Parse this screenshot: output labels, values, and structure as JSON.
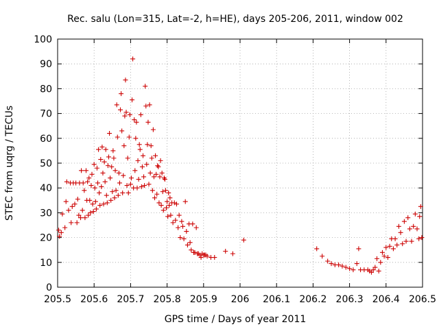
{
  "chart_data": {
    "type": "scatter",
    "title": "Rec. salu (Lon=315, Lat=-2, h=HE), days 205-206, 2011, window 002",
    "xlabel": "GPS time / Days of year 2011",
    "ylabel": "STEC from uqrg / TECUs",
    "xlim": [
      205.5,
      206.5
    ],
    "ylim": [
      0,
      100
    ],
    "x_ticks": [
      205.5,
      205.6,
      205.7,
      205.8,
      205.9,
      206.0,
      206.1,
      206.2,
      206.3,
      206.4,
      206.5
    ],
    "x_tick_labels": [
      "205.5",
      "205.6",
      "205.7",
      "205.8",
      "205.9",
      "206",
      "206.1",
      "206.2",
      "206.3",
      "206.4",
      "206.5"
    ],
    "y_ticks": [
      0,
      10,
      20,
      30,
      40,
      50,
      60,
      70,
      80,
      90,
      100
    ],
    "y_tick_labels": [
      "0",
      "10",
      "20",
      "30",
      "40",
      "50",
      "60",
      "70",
      "80",
      "90",
      "100"
    ],
    "marker": "+",
    "color": "#cc0000",
    "series": [
      {
        "name": "STEC",
        "points": [
          [
            205.503,
            23.0
          ],
          [
            205.505,
            20.5
          ],
          [
            205.51,
            22.0
          ],
          [
            205.513,
            29.5
          ],
          [
            205.52,
            24.0
          ],
          [
            205.523,
            34.5
          ],
          [
            205.525,
            42.5
          ],
          [
            205.53,
            31.0
          ],
          [
            205.535,
            42.0
          ],
          [
            205.537,
            26.0
          ],
          [
            205.54,
            32.5
          ],
          [
            205.543,
            42.0
          ],
          [
            205.547,
            33.5
          ],
          [
            205.55,
            42.0
          ],
          [
            205.553,
            26.0
          ],
          [
            205.555,
            35.5
          ],
          [
            205.558,
            29.0
          ],
          [
            205.56,
            42.0
          ],
          [
            205.563,
            28.0
          ],
          [
            205.565,
            47.0
          ],
          [
            205.568,
            31.0
          ],
          [
            205.57,
            42.0
          ],
          [
            205.573,
            39.0
          ],
          [
            205.575,
            28.0
          ],
          [
            205.578,
            47.0
          ],
          [
            205.58,
            35.0
          ],
          [
            205.582,
            42.5
          ],
          [
            205.584,
            29.0
          ],
          [
            205.586,
            44.0
          ],
          [
            205.588,
            35.0
          ],
          [
            205.59,
            30.0
          ],
          [
            205.592,
            41.0
          ],
          [
            205.594,
            45.5
          ],
          [
            205.596,
            33.5
          ],
          [
            205.598,
            30.5
          ],
          [
            205.6,
            49.5
          ],
          [
            205.602,
            40.0
          ],
          [
            205.604,
            34.5
          ],
          [
            205.606,
            31.5
          ],
          [
            205.608,
            48.0
          ],
          [
            205.61,
            42.0
          ],
          [
            205.612,
            55.5
          ],
          [
            205.614,
            38.0
          ],
          [
            205.616,
            33.0
          ],
          [
            205.618,
            51.5
          ],
          [
            205.62,
            40.5
          ],
          [
            205.622,
            56.5
          ],
          [
            205.624,
            46.0
          ],
          [
            205.626,
            33.5
          ],
          [
            205.628,
            50.5
          ],
          [
            205.63,
            42.5
          ],
          [
            205.632,
            55.5
          ],
          [
            205.634,
            37.0
          ],
          [
            205.636,
            34.0
          ],
          [
            205.638,
            49.0
          ],
          [
            205.64,
            52.5
          ],
          [
            205.642,
            62.0
          ],
          [
            205.644,
            44.0
          ],
          [
            205.646,
            35.0
          ],
          [
            205.648,
            48.5
          ],
          [
            205.65,
            38.5
          ],
          [
            205.652,
            55.0
          ],
          [
            205.654,
            52.0
          ],
          [
            205.656,
            36.0
          ],
          [
            205.658,
            47.0
          ],
          [
            205.66,
            39.0
          ],
          [
            205.662,
            73.5
          ],
          [
            205.664,
            60.5
          ],
          [
            205.666,
            37.0
          ],
          [
            205.668,
            46.0
          ],
          [
            205.67,
            42.0
          ],
          [
            205.672,
            71.5
          ],
          [
            205.674,
            78.0
          ],
          [
            205.676,
            63.0
          ],
          [
            205.678,
            38.0
          ],
          [
            205.68,
            45.0
          ],
          [
            205.682,
            57.0
          ],
          [
            205.684,
            69.0
          ],
          [
            205.686,
            83.5
          ],
          [
            205.688,
            70.5
          ],
          [
            205.69,
            41.0
          ],
          [
            205.692,
            52.0
          ],
          [
            205.694,
            38.0
          ],
          [
            205.696,
            60.5
          ],
          [
            205.698,
            69.5
          ],
          [
            205.7,
            41.5
          ],
          [
            205.702,
            44.0
          ],
          [
            205.704,
            75.5
          ],
          [
            205.706,
            92.0
          ],
          [
            205.708,
            40.0
          ],
          [
            205.71,
            67.5
          ],
          [
            205.712,
            47.0
          ],
          [
            205.714,
            60.0
          ],
          [
            205.716,
            66.5
          ],
          [
            205.718,
            40.0
          ],
          [
            205.72,
            51.0
          ],
          [
            205.722,
            43.5
          ],
          [
            205.724,
            57.5
          ],
          [
            205.726,
            55.5
          ],
          [
            205.728,
            69.5
          ],
          [
            205.73,
            40.5
          ],
          [
            205.732,
            48.5
          ],
          [
            205.734,
            53.0
          ],
          [
            205.736,
            44.5
          ],
          [
            205.738,
            41.0
          ],
          [
            205.74,
            81.0
          ],
          [
            205.742,
            73.0
          ],
          [
            205.744,
            49.5
          ],
          [
            205.746,
            57.5
          ],
          [
            205.748,
            66.5
          ],
          [
            205.75,
            41.5
          ],
          [
            205.752,
            73.5
          ],
          [
            205.754,
            46.0
          ],
          [
            205.756,
            57.0
          ],
          [
            205.758,
            52.0
          ],
          [
            205.76,
            39.0
          ],
          [
            205.762,
            63.5
          ],
          [
            205.764,
            44.5
          ],
          [
            205.766,
            36.0
          ],
          [
            205.768,
            53.0
          ],
          [
            205.77,
            45.5
          ],
          [
            205.772,
            37.5
          ],
          [
            205.774,
            49.0
          ],
          [
            205.776,
            48.5
          ],
          [
            205.778,
            34.0
          ],
          [
            205.78,
            44.5
          ],
          [
            205.782,
            51.0
          ],
          [
            205.784,
            33.0
          ],
          [
            205.786,
            46.0
          ],
          [
            205.788,
            38.5
          ],
          [
            205.79,
            31.0
          ],
          [
            205.792,
            44.0
          ],
          [
            205.794,
            43.5
          ],
          [
            205.796,
            39.0
          ],
          [
            205.798,
            32.0
          ],
          [
            205.8,
            34.5
          ],
          [
            205.802,
            28.5
          ],
          [
            205.804,
            38.0
          ],
          [
            205.806,
            33.0
          ],
          [
            205.808,
            36.0
          ],
          [
            205.81,
            29.0
          ],
          [
            205.813,
            34.0
          ],
          [
            205.816,
            26.0
          ],
          [
            205.82,
            34.0
          ],
          [
            205.823,
            27.0
          ],
          [
            205.826,
            33.5
          ],
          [
            205.83,
            24.0
          ],
          [
            205.833,
            29.0
          ],
          [
            205.836,
            20.0
          ],
          [
            205.84,
            26.5
          ],
          [
            205.843,
            24.5
          ],
          [
            205.846,
            19.5
          ],
          [
            205.85,
            34.5
          ],
          [
            205.853,
            22.5
          ],
          [
            205.856,
            17.0
          ],
          [
            205.86,
            25.5
          ],
          [
            205.863,
            18.0
          ],
          [
            205.866,
            15.0
          ],
          [
            205.87,
            25.5
          ],
          [
            205.873,
            14.0
          ],
          [
            205.876,
            14.0
          ],
          [
            205.88,
            24.0
          ],
          [
            205.883,
            13.5
          ],
          [
            205.886,
            13.5
          ],
          [
            205.89,
            13.0
          ],
          [
            205.893,
            12.0
          ],
          [
            205.896,
            13.5
          ],
          [
            205.9,
            13.0
          ],
          [
            205.903,
            13.0
          ],
          [
            205.906,
            13.0
          ],
          [
            205.91,
            12.5
          ],
          [
            205.92,
            12.0
          ],
          [
            205.93,
            12.0
          ],
          [
            205.96,
            14.5
          ],
          [
            205.98,
            13.5
          ],
          [
            206.01,
            19.0
          ],
          [
            206.21,
            15.5
          ],
          [
            206.225,
            12.5
          ],
          [
            206.24,
            10.5
          ],
          [
            206.25,
            9.5
          ],
          [
            206.26,
            9.0
          ],
          [
            206.27,
            9.0
          ],
          [
            206.28,
            8.5
          ],
          [
            206.29,
            8.0
          ],
          [
            206.3,
            7.5
          ],
          [
            206.31,
            7.0
          ],
          [
            206.32,
            9.5
          ],
          [
            206.325,
            15.5
          ],
          [
            206.33,
            7.0
          ],
          [
            206.34,
            7.0
          ],
          [
            206.35,
            7.0
          ],
          [
            206.355,
            6.5
          ],
          [
            206.36,
            6.0
          ],
          [
            206.365,
            7.0
          ],
          [
            206.37,
            8.0
          ],
          [
            206.375,
            11.5
          ],
          [
            206.38,
            6.5
          ],
          [
            206.385,
            10.0
          ],
          [
            206.39,
            14.0
          ],
          [
            206.395,
            12.5
          ],
          [
            206.4,
            16.0
          ],
          [
            206.405,
            12.0
          ],
          [
            206.41,
            16.5
          ],
          [
            206.415,
            19.5
          ],
          [
            206.42,
            15.5
          ],
          [
            206.425,
            19.5
          ],
          [
            206.43,
            17.0
          ],
          [
            206.435,
            24.5
          ],
          [
            206.44,
            22.0
          ],
          [
            206.445,
            17.5
          ],
          [
            206.45,
            26.5
          ],
          [
            206.455,
            18.5
          ],
          [
            206.46,
            28.0
          ],
          [
            206.465,
            23.5
          ],
          [
            206.47,
            18.5
          ],
          [
            206.475,
            24.5
          ],
          [
            206.48,
            29.5
          ],
          [
            206.485,
            23.5
          ],
          [
            206.49,
            19.5
          ],
          [
            206.492,
            28.5
          ],
          [
            206.495,
            32.5
          ],
          [
            206.498,
            20.0
          ]
        ]
      }
    ]
  }
}
